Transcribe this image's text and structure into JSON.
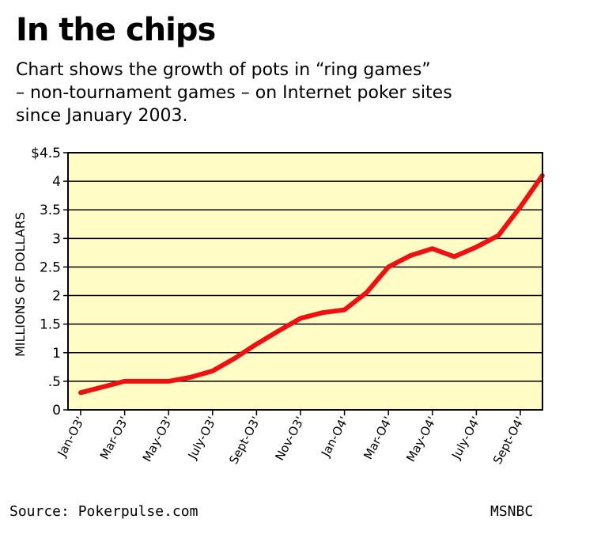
{
  "title": "In the chips",
  "subtitle_lines": [
    "Chart shows the growth of pots in “ring games”",
    "– non-tournament games – on Internet poker sites",
    "since January 2003."
  ],
  "source": "Source:  Pokerpulse.com",
  "credit": "MSNBC",
  "colors": {
    "plot_bg": "#FFFCC5",
    "line": "#EE1111",
    "grid": "#000000"
  },
  "chart_data": {
    "type": "line",
    "ylabel": "MILLIONS OF DOLLARS",
    "ylim": [
      0,
      4.5
    ],
    "y_ticks": [
      {
        "value": 4.5,
        "label": "$4.5"
      },
      {
        "value": 4,
        "label": "4"
      },
      {
        "value": 3.5,
        "label": "3.5"
      },
      {
        "value": 3,
        "label": "3"
      },
      {
        "value": 2.5,
        "label": "2.5"
      },
      {
        "value": 2,
        "label": "2"
      },
      {
        "value": 1.5,
        "label": "1.5"
      },
      {
        "value": 1,
        "label": "1"
      },
      {
        "value": 0.5,
        "label": ".5"
      },
      {
        "value": 0,
        "label": "0"
      }
    ],
    "x_tick_labels": [
      "Jan-O3'",
      "Mar-O3'",
      "May-O3'",
      "July-O3'",
      "Sept-O3'",
      "Nov-O3'",
      "Jan-O4'",
      "Mar-O4'",
      "May-O4'",
      "July-O4'",
      "Sept-O4'"
    ],
    "months": [
      "Jan-03",
      "Feb-03",
      "Mar-03",
      "Apr-03",
      "May-03",
      "Jun-03",
      "Jul-03",
      "Aug-03",
      "Sep-03",
      "Oct-03",
      "Nov-03",
      "Dec-03",
      "Jan-04",
      "Feb-04",
      "Mar-04",
      "Apr-04",
      "May-04",
      "Jun-04",
      "Jul-04",
      "Aug-04",
      "Sep-04",
      "Oct-04"
    ],
    "values": [
      0.3,
      0.4,
      0.5,
      0.5,
      0.5,
      0.57,
      0.68,
      0.9,
      1.15,
      1.38,
      1.6,
      1.7,
      1.75,
      2.05,
      2.5,
      2.7,
      2.82,
      2.68,
      2.85,
      3.05,
      3.55,
      4.1
    ],
    "grid": true
  }
}
